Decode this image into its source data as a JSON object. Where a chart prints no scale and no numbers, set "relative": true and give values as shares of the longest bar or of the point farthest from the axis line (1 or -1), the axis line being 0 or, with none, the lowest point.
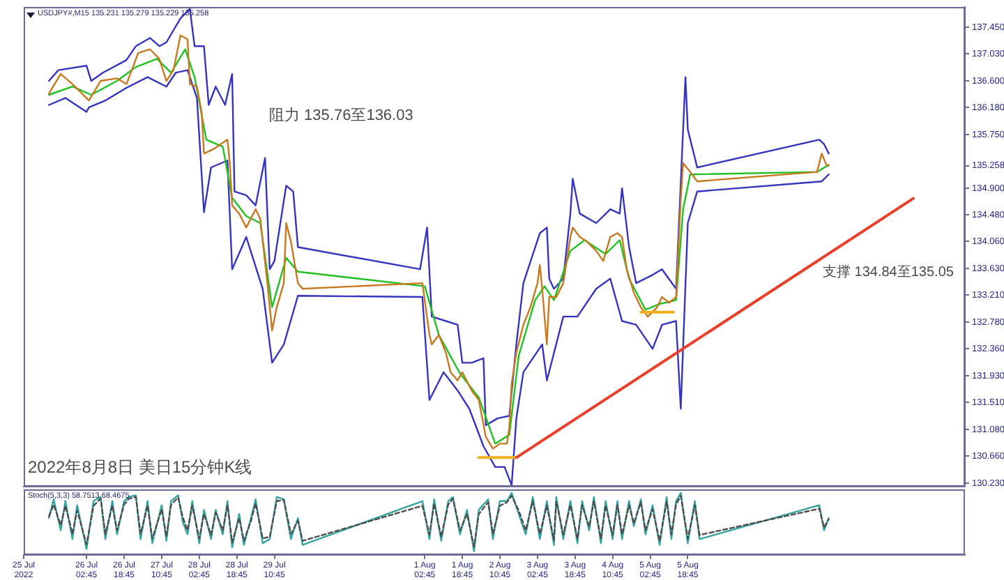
{
  "chart_data": [
    {
      "type": "line",
      "title": "USDJPY#,M15 135.231 135.279 135.229 135.258",
      "xlim": [
        "2022-07-25",
        "2022-08-10T16:45"
      ],
      "ylim": [
        130.18,
        137.77
      ],
      "yticks": [
        {
          "value": 137.45,
          "label": "137.450"
        },
        {
          "value": 137.03,
          "label": "137.030"
        },
        {
          "value": 136.6,
          "label": "136.600"
        },
        {
          "value": 136.18,
          "label": "136.180"
        },
        {
          "value": 135.75,
          "label": "135.750"
        },
        {
          "value": 135.258,
          "label": "135.258"
        },
        {
          "value": 134.9,
          "label": "134.900"
        },
        {
          "value": 134.48,
          "label": "134.480"
        },
        {
          "value": 134.06,
          "label": "134.060"
        },
        {
          "value": 133.63,
          "label": "133.630"
        },
        {
          "value": 133.21,
          "label": "133.210"
        },
        {
          "value": 132.78,
          "label": "132.780"
        },
        {
          "value": 132.36,
          "label": "132.360"
        },
        {
          "value": 131.93,
          "label": "131.930"
        },
        {
          "value": 131.51,
          "label": "131.510"
        },
        {
          "value": 131.08,
          "label": "131.080"
        },
        {
          "value": 130.66,
          "label": "130.660"
        },
        {
          "value": 130.23,
          "label": "130.230"
        }
      ],
      "tick_labels": "y",
      "annotations": [
        "阻力 135.76至136.03",
        "支撑 134.84至135.05",
        "2022年8月8日 美日15分钟K线"
      ],
      "series": [
        {
          "color": "#3434c0",
          "x": [
            "2022-07-25T10:45",
            "2022-07-25T14:45",
            "2022-07-26T02:45",
            "2022-07-26T04:45",
            "2022-07-26T09:45",
            "2022-07-26T19:45",
            "2022-07-26T23:45",
            "2022-07-27T05:45",
            "2022-07-27T09:45",
            "2022-07-27T12:45",
            "2022-07-27T18:45",
            "2022-07-27T22:45",
            "2022-07-28T00:45",
            "2022-07-28T04:45",
            "2022-07-28T06:45",
            "2022-07-28T09:45",
            "2022-07-28T13:45",
            "2022-07-28T16:45",
            "2022-07-28T17:45",
            "2022-07-28T22:45",
            "2022-07-29T02:45",
            "2022-07-29T06:45",
            "2022-07-29T08:45",
            "2022-07-29T10:45",
            "2022-07-29T15:45",
            "2022-07-29T18:45",
            "2022-07-29T20:45",
            "2022-08-01T00:45",
            "2022-08-01T03:45",
            "2022-08-01T05:45",
            "2022-08-01T11:45",
            "2022-08-01T16:45",
            "2022-08-01T18:45",
            "2022-08-01T22:45",
            "2022-08-02T03:45",
            "2022-08-02T04:45",
            "2022-08-02T09:45",
            "2022-08-02T14:45",
            "2022-08-02T17:45",
            "2022-08-02T20:45",
            "2022-08-03T03:45",
            "2022-08-03T06:45",
            "2022-08-03T07:45",
            "2022-08-03T09:45",
            "2022-08-03T13:45",
            "2022-08-03T16:45",
            "2022-08-03T17:45",
            "2022-08-03T20:45",
            "2022-08-04T03:45",
            "2022-08-04T09:45",
            "2022-08-04T13:45",
            "2022-08-04T14:45",
            "2022-08-04T17:45",
            "2022-08-04T20:45",
            "2022-08-05T03:45",
            "2022-08-05T07:45",
            "2022-08-05T13:45",
            "2022-08-05T16:45",
            "2022-08-05T17:45",
            "2022-08-05T18:45",
            "2022-08-05T22:45",
            "2022-08-08T02:45",
            "2022-08-08T04:45",
            "2022-08-08T06:45"
          ],
          "values": [
            136.6,
            136.77,
            136.84,
            136.6,
            136.73,
            136.93,
            137.15,
            137.28,
            137.15,
            137.21,
            137.59,
            137.74,
            137.15,
            137.15,
            136.22,
            136.51,
            136.22,
            136.71,
            134.85,
            134.79,
            134.63,
            135.38,
            133.62,
            133.75,
            134.94,
            134.85,
            133.97,
            133.62,
            134.28,
            132.87,
            132.8,
            132.74,
            132.14,
            132.14,
            132.21,
            131.15,
            131.26,
            131.3,
            132.43,
            133.4,
            134.19,
            134.28,
            133.47,
            133.31,
            133.47,
            134.5,
            135.05,
            134.5,
            134.35,
            134.57,
            134.5,
            134.9,
            133.97,
            133.4,
            133.53,
            133.62,
            133.31,
            135.83,
            136.66,
            135.83,
            135.23,
            135.67,
            135.6,
            135.45
          ]
        },
        {
          "color": "#3434c0",
          "x": [
            "2022-07-25T10:45",
            "2022-07-25T17:45",
            "2022-07-26T02:45",
            "2022-07-26T03:45",
            "2022-07-26T10:45",
            "2022-07-26T19:45",
            "2022-07-27T04:45",
            "2022-07-27T12:45",
            "2022-07-27T16:45",
            "2022-07-27T21:45",
            "2022-07-28T01:45",
            "2022-07-28T04:45",
            "2022-07-28T07:45",
            "2022-07-28T14:45",
            "2022-07-28T16:45",
            "2022-07-28T22:45",
            "2022-07-29T05:45",
            "2022-07-29T09:45",
            "2022-07-29T14:45",
            "2022-07-29T20:45",
            "2022-08-01T01:45",
            "2022-08-01T04:45",
            "2022-08-01T10:45",
            "2022-08-01T16:45",
            "2022-08-01T21:45",
            "2022-08-02T03:45",
            "2022-08-02T08:45",
            "2022-08-02T12:45",
            "2022-08-02T15:45",
            "2022-08-02T17:45",
            "2022-08-02T20:45",
            "2022-08-03T04:45",
            "2022-08-03T06:45",
            "2022-08-03T13:45",
            "2022-08-03T19:45",
            "2022-08-04T03:45",
            "2022-08-04T09:45",
            "2022-08-04T14:45",
            "2022-08-04T20:45",
            "2022-08-05T03:45",
            "2022-08-05T07:45",
            "2022-08-05T13:45",
            "2022-08-05T15:45",
            "2022-08-05T18:45",
            "2022-08-05T22:45",
            "2022-08-08T03:45",
            "2022-08-08T06:45"
          ],
          "values": [
            136.22,
            136.33,
            136.11,
            136.18,
            136.29,
            136.49,
            136.66,
            136.51,
            136.73,
            136.77,
            136.33,
            134.52,
            135.23,
            135.34,
            133.62,
            134.13,
            133.31,
            132.14,
            132.43,
            133.2,
            133.18,
            131.55,
            131.99,
            131.7,
            131.41,
            130.82,
            130.49,
            130.49,
            130.2,
            131.26,
            131.99,
            132.43,
            131.86,
            132.87,
            132.87,
            133.31,
            133.47,
            132.8,
            132.74,
            132.36,
            132.74,
            132.8,
            131.41,
            134.35,
            134.85,
            135.01,
            135.12
          ]
        },
        {
          "color": "#20c020",
          "x": [
            "2022-07-25T10:45",
            "2022-07-25T20:45",
            "2022-07-26T04:45",
            "2022-07-26T15:45",
            "2022-07-26T23:45",
            "2022-07-27T08:45",
            "2022-07-27T14:45",
            "2022-07-27T20:45",
            "2022-07-28T00:45",
            "2022-07-28T05:45",
            "2022-07-28T12:45",
            "2022-07-28T16:45",
            "2022-07-28T22:45",
            "2022-07-29T04:45",
            "2022-07-29T09:45",
            "2022-07-29T15:45",
            "2022-07-29T20:45",
            "2022-08-01T02:45",
            "2022-08-01T08:45",
            "2022-08-01T17:45",
            "2022-08-02T01:45",
            "2022-08-02T08:45",
            "2022-08-02T14:45",
            "2022-08-02T18:45",
            "2022-08-03T01:45",
            "2022-08-03T05:45",
            "2022-08-03T09:45",
            "2022-08-03T16:45",
            "2022-08-03T22:45",
            "2022-08-04T07:45",
            "2022-08-04T13:45",
            "2022-08-04T17:45",
            "2022-08-05T00:45",
            "2022-08-05T06:45",
            "2022-08-05T13:45",
            "2022-08-05T16:45",
            "2022-08-05T19:45",
            "2022-08-08T01:45",
            "2022-08-08T06:45"
          ],
          "values": [
            136.38,
            136.51,
            136.38,
            136.6,
            136.82,
            136.95,
            136.73,
            137.1,
            136.66,
            135.67,
            135.56,
            134.75,
            134.46,
            134.35,
            133.02,
            133.8,
            133.58,
            133.35,
            132.58,
            131.97,
            131.59,
            130.86,
            131.0,
            132.25,
            133.13,
            133.35,
            133.13,
            133.91,
            134.08,
            133.86,
            134.08,
            133.47,
            132.98,
            133.07,
            133.13,
            134.57,
            135.12,
            135.16,
            135.27
          ]
        },
        {
          "color": "#c8781e",
          "x": [
            "2022-07-25T10:45",
            "2022-07-25T15:45",
            "2022-07-25T20:45",
            "2022-07-26T03:45",
            "2022-07-26T08:45",
            "2022-07-26T15:45",
            "2022-07-26T19:45",
            "2022-07-27T00:45",
            "2022-07-27T05:45",
            "2022-07-27T09:45",
            "2022-07-27T12:45",
            "2022-07-27T15:45",
            "2022-07-27T18:45",
            "2022-07-27T21:45",
            "2022-07-27T22:45",
            "2022-07-28T01:45",
            "2022-07-28T03:45",
            "2022-07-28T04:45",
            "2022-07-28T08:45",
            "2022-07-28T14:45",
            "2022-07-28T15:45",
            "2022-07-28T16:45",
            "2022-07-28T19:45",
            "2022-07-28T22:45",
            "2022-07-29T02:45",
            "2022-07-29T04:45",
            "2022-07-29T07:45",
            "2022-07-29T09:45",
            "2022-07-29T11:45",
            "2022-07-29T14:45",
            "2022-07-29T15:45",
            "2022-07-29T17:45",
            "2022-07-29T20:45",
            "2022-07-29T22:45",
            "2022-08-01T01:45",
            "2022-08-01T04:45",
            "2022-08-01T05:45",
            "2022-08-01T08:45",
            "2022-08-01T11:45",
            "2022-08-01T13:45",
            "2022-08-01T16:45",
            "2022-08-01T18:45",
            "2022-08-01T22:45",
            "2022-08-02T01:45",
            "2022-08-02T04:45",
            "2022-08-02T07:45",
            "2022-08-02T10:45",
            "2022-08-02T13:45",
            "2022-08-02T14:45",
            "2022-08-02T15:45",
            "2022-08-02T17:45",
            "2022-08-02T20:45",
            "2022-08-02T23:45",
            "2022-08-03T02:45",
            "2022-08-03T03:45",
            "2022-08-03T04:45",
            "2022-08-03T06:45",
            "2022-08-03T07:45",
            "2022-08-03T10:45",
            "2022-08-03T13:45",
            "2022-08-03T16:45",
            "2022-08-03T17:45",
            "2022-08-03T20:45",
            "2022-08-03T23:45",
            "2022-08-04T03:45",
            "2022-08-04T06:45",
            "2022-08-04T09:45",
            "2022-08-04T12:45",
            "2022-08-04T14:45",
            "2022-08-04T16:45",
            "2022-08-04T19:45",
            "2022-08-04T22:45",
            "2022-08-05T01:45",
            "2022-08-05T05:45",
            "2022-08-05T07:45",
            "2022-08-05T10:45",
            "2022-08-05T13:45",
            "2022-08-05T15:45",
            "2022-08-05T16:45",
            "2022-08-05T19:45",
            "2022-08-05T22:45",
            "2022-08-08T01:45",
            "2022-08-08T03:45",
            "2022-08-08T05:45",
            "2022-08-08T06:45"
          ],
          "values": [
            136.4,
            136.71,
            136.55,
            136.29,
            136.6,
            136.64,
            136.55,
            137.04,
            137.1,
            136.95,
            136.6,
            136.77,
            137.32,
            137.26,
            136.55,
            136.51,
            136.11,
            135.45,
            135.52,
            135.67,
            135.3,
            134.63,
            134.5,
            134.28,
            134.57,
            134.41,
            133.4,
            132.65,
            133.02,
            133.4,
            134.35,
            134.06,
            133.4,
            133.31,
            133.4,
            132.58,
            132.43,
            132.58,
            132.3,
            131.99,
            131.86,
            131.99,
            131.7,
            131.55,
            130.97,
            130.78,
            130.86,
            130.86,
            131.11,
            131.81,
            132.3,
            132.74,
            133.02,
            133.4,
            133.69,
            133.31,
            132.43,
            133.18,
            133.18,
            133.4,
            134.13,
            134.28,
            134.13,
            134.06,
            133.91,
            133.75,
            134.13,
            134.19,
            134.13,
            133.62,
            133.25,
            133.02,
            132.87,
            133.02,
            133.18,
            133.09,
            133.18,
            134.72,
            135.3,
            135.16,
            135.01,
            135.16,
            135.45,
            135.27,
            135.26
          ]
        },
        {
          "color": "#f2b01e",
          "x": [
            "2022-08-02T01:45",
            "2022-08-02T17:45"
          ],
          "values": [
            130.64,
            130.64
          ]
        },
        {
          "color": "#f2b01e",
          "x": [
            "2022-08-04T22:45",
            "2022-08-05T12:45"
          ],
          "values": [
            132.94,
            132.94
          ]
        },
        {
          "color": "#e8402a",
          "x": [
            "2022-08-02T17:45",
            "2022-08-09T18:45"
          ],
          "values": [
            130.64,
            134.74
          ]
        }
      ]
    },
    {
      "type": "line",
      "title": "Stoch(5,3,3) 58.7513 68.4675",
      "relative": true,
      "xlim": [
        "2022-07-25",
        "2022-08-10T16:45"
      ],
      "xticks": [
        {
          "value": "2022-07-25",
          "label": "25 Jul 2022"
        },
        {
          "value": "2022-07-26T02:45",
          "label": "26 Jul 02:45"
        },
        {
          "value": "2022-07-26T18:45",
          "label": "26 Jul 18:45"
        },
        {
          "value": "2022-07-27T10:45",
          "label": "27 Jul 10:45"
        },
        {
          "value": "2022-07-28T02:45",
          "label": "28 Jul 02:45"
        },
        {
          "value": "2022-07-28T18:45",
          "label": "28 Jul 18:45"
        },
        {
          "value": "2022-07-29T10:45",
          "label": "29 Jul 10:45"
        },
        {
          "value": "2022-08-01T02:45",
          "label": "1 Aug 02:45"
        },
        {
          "value": "2022-08-01T18:45",
          "label": "1 Aug 18:45"
        },
        {
          "value": "2022-08-02T10:45",
          "label": "2 Aug 10:45"
        },
        {
          "value": "2022-08-03T02:45",
          "label": "3 Aug 02:45"
        },
        {
          "value": "2022-08-03T18:45",
          "label": "3 Aug 18:45"
        },
        {
          "value": "2022-08-04T10:45",
          "label": "4 Aug 10:45"
        },
        {
          "value": "2022-08-05T02:45",
          "label": "5 Aug 02:45"
        },
        {
          "value": "2022-08-05T18:45",
          "label": "5 Aug 18:45"
        }
      ],
      "tick_labels": "x",
      "x": [
        "2022-07-25T10:45",
        "2022-07-25T12:45",
        "2022-07-25T15:45",
        "2022-07-25T17:45",
        "2022-07-25T20:45",
        "2022-07-25T22:45",
        "2022-07-26T02:45",
        "2022-07-26T05:45",
        "2022-07-26T08:45",
        "2022-07-26T10:45",
        "2022-07-26T13:45",
        "2022-07-26T15:45",
        "2022-07-26T18:45",
        "2022-07-26T20:45",
        "2022-07-26T23:45",
        "2022-07-27T01:45",
        "2022-07-27T04:45",
        "2022-07-27T06:45",
        "2022-07-27T10:45",
        "2022-07-27T12:45",
        "2022-07-27T14:45",
        "2022-07-27T17:45",
        "2022-07-27T19:45",
        "2022-07-27T21:45",
        "2022-07-27T23:45",
        "2022-07-28T02:45",
        "2022-07-28T04:45",
        "2022-07-28T07:45",
        "2022-07-28T09:45",
        "2022-07-28T12:45",
        "2022-07-28T14:45",
        "2022-07-28T16:45",
        "2022-07-28T19:45",
        "2022-07-28T21:45",
        "2022-07-29T00:45",
        "2022-07-29T02:45",
        "2022-07-29T05:45",
        "2022-07-29T08:45",
        "2022-07-29T11:45",
        "2022-07-29T14:45",
        "2022-07-29T17:45",
        "2022-07-29T20:45",
        "2022-07-29T22:45",
        "2022-08-01T01:45",
        "2022-08-01T04:45",
        "2022-08-01T06:45",
        "2022-08-01T09:45",
        "2022-08-01T12:45",
        "2022-08-01T14:45",
        "2022-08-01T17:45",
        "2022-08-01T20:45",
        "2022-08-01T23:45",
        "2022-08-02T01:45",
        "2022-08-02T05:45",
        "2022-08-02T07:45",
        "2022-08-02T10:45",
        "2022-08-02T13:45",
        "2022-08-02T15:45",
        "2022-08-02T18:45",
        "2022-08-02T21:45",
        "2022-08-03T00:45",
        "2022-08-03T03:45",
        "2022-08-03T06:45",
        "2022-08-03T09:45",
        "2022-08-03T10:45",
        "2022-08-03T13:45",
        "2022-08-03T16:45",
        "2022-08-03T19:45",
        "2022-08-03T21:45",
        "2022-08-04T00:45",
        "2022-08-04T02:45",
        "2022-08-04T05:45",
        "2022-08-04T07:45",
        "2022-08-04T10:45",
        "2022-08-04T12:45",
        "2022-08-04T14:45",
        "2022-08-04T17:45",
        "2022-08-04T19:45",
        "2022-08-04T22:45",
        "2022-08-05T00:45",
        "2022-08-05T03:45",
        "2022-08-05T06:45",
        "2022-08-05T09:45",
        "2022-08-05T11:45",
        "2022-08-05T13:45",
        "2022-08-05T15:45",
        "2022-08-05T18:45",
        "2022-08-05T21:45",
        "2022-08-05T23:45",
        "2022-08-08T02:45",
        "2022-08-08T04:45",
        "2022-08-08T06:45"
      ],
      "series": [
        {
          "color": "#36a3a3",
          "values": [
            0.57,
            0.89,
            0.36,
            0.86,
            0.21,
            0.79,
            0.04,
            0.86,
            0.93,
            0.21,
            0.86,
            0.29,
            0.86,
            0.93,
            0.96,
            0.21,
            0.86,
            0.14,
            0.79,
            0.18,
            0.86,
            0.96,
            0.5,
            0.29,
            0.86,
            0.14,
            0.71,
            0.21,
            0.71,
            0.29,
            0.86,
            0.07,
            0.64,
            0.11,
            0.57,
            0.89,
            0.14,
            0.21,
            0.93,
            0.89,
            0.21,
            0.57,
            0.11,
            0.86,
            0.21,
            0.89,
            0.18,
            0.86,
            0.93,
            0.29,
            0.71,
            0,
            0.71,
            0.89,
            0.21,
            0.86,
            0.86,
            1,
            0.64,
            0.29,
            0.93,
            0.21,
            0.86,
            0.11,
            0.93,
            0.21,
            0.86,
            0.14,
            0.86,
            0.36,
            0.93,
            0.14,
            0.86,
            0.21,
            0.86,
            0.21,
            0.86,
            0.43,
            0.89,
            0.29,
            0.79,
            0.11,
            0.93,
            0.21,
            0.86,
            1,
            0.14,
            0.86,
            0.21,
            0.79,
            0.36,
            0.57
          ]
        },
        {
          "color": "#4d4d4d",
          "line_style": "dashed",
          "values": [
            0.6,
            0.8,
            0.45,
            0.78,
            0.3,
            0.7,
            0.12,
            0.78,
            0.9,
            0.3,
            0.78,
            0.36,
            0.8,
            0.9,
            0.93,
            0.3,
            0.78,
            0.22,
            0.72,
            0.25,
            0.8,
            0.92,
            0.58,
            0.36,
            0.78,
            0.22,
            0.64,
            0.28,
            0.66,
            0.36,
            0.79,
            0.15,
            0.57,
            0.18,
            0.52,
            0.82,
            0.22,
            0.25,
            0.86,
            0.88,
            0.3,
            0.52,
            0.18,
            0.78,
            0.29,
            0.82,
            0.25,
            0.8,
            0.9,
            0.36,
            0.64,
            0.08,
            0.64,
            0.84,
            0.3,
            0.78,
            0.84,
            0.95,
            0.7,
            0.36,
            0.86,
            0.3,
            0.78,
            0.19,
            0.85,
            0.29,
            0.79,
            0.22,
            0.79,
            0.42,
            0.86,
            0.22,
            0.79,
            0.28,
            0.79,
            0.29,
            0.79,
            0.48,
            0.84,
            0.36,
            0.72,
            0.18,
            0.85,
            0.29,
            0.8,
            0.95,
            0.22,
            0.79,
            0.28,
            0.73,
            0.41,
            0.55
          ]
        }
      ]
    }
  ]
}
